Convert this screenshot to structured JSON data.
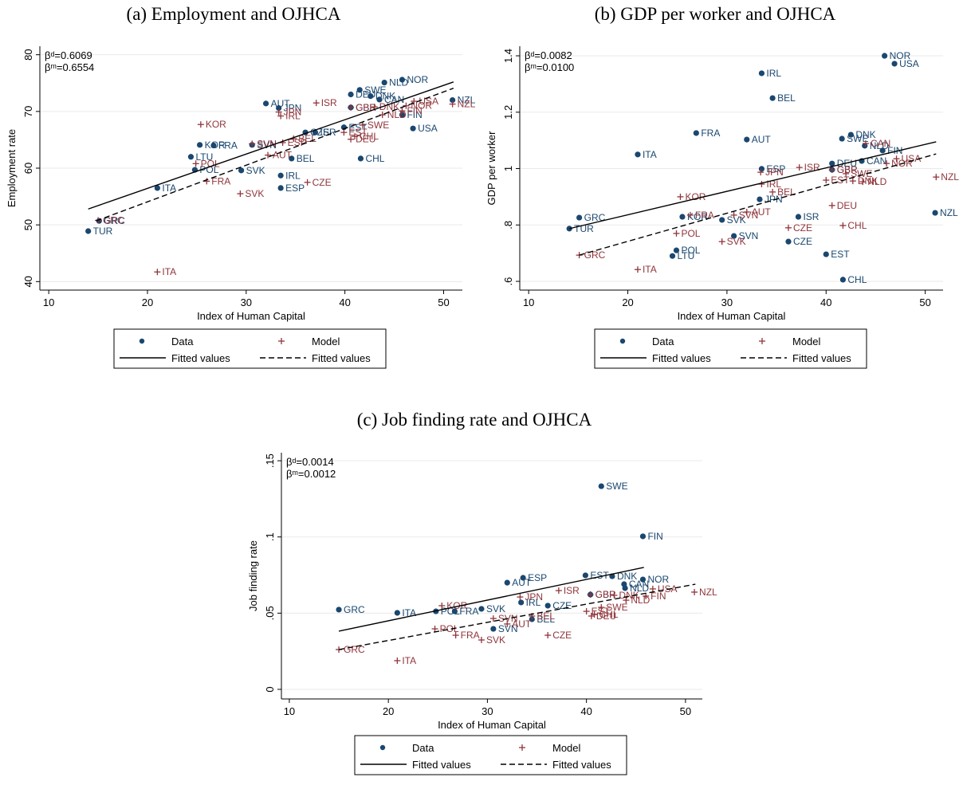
{
  "chart_data": [
    {
      "type": "scatter",
      "title": "(a) Employment and OJHCA",
      "x_label": "Index of Human Capital",
      "y_label": "Employment rate",
      "annotations": [
        "βᵈ=0.6069",
        "βᵐ=0.6554"
      ],
      "xlim": [
        9.1,
        51.9
      ],
      "ylim": [
        38.5,
        81.5
      ],
      "xticks": [
        10,
        20,
        30,
        40,
        50
      ],
      "yticks": [
        40,
        50,
        60,
        70,
        80
      ],
      "grid": true,
      "series": [
        {
          "name": "Data",
          "marker": "dot",
          "color": "#1a476f",
          "labels": [
            "NOR",
            "NLD",
            "SWE",
            "DEU",
            "DNK",
            "CAN",
            "NZL",
            "AUT",
            "JPN",
            "GBR",
            "FIN",
            "USA",
            "EST",
            "ISR",
            "CZE",
            "CHL",
            "BEL",
            "KOR",
            "FRA",
            "SVN",
            "LTU",
            "POL",
            "SVK",
            "IRL",
            "ESP",
            "ITA",
            "GRC",
            "TUR"
          ],
          "x": [
            45.8,
            44.0,
            41.5,
            40.6,
            42.6,
            43.5,
            50.9,
            32.0,
            33.3,
            40.6,
            45.8,
            46.9,
            39.9,
            37.0,
            36.0,
            41.6,
            34.6,
            25.3,
            26.7,
            30.6,
            24.4,
            24.8,
            29.5,
            33.5,
            33.5,
            21.0,
            15.1,
            14.0
          ],
          "values": [
            75.6,
            75.1,
            73.8,
            73.0,
            72.7,
            72.1,
            72.0,
            71.4,
            70.6,
            70.7,
            69.4,
            67.0,
            67.2,
            66.3,
            66.3,
            61.7,
            61.7,
            64.1,
            64.0,
            64.1,
            62.0,
            59.7,
            59.6,
            58.7,
            56.5,
            56.5,
            50.7,
            48.9
          ]
        },
        {
          "name": "Model",
          "marker": "plus",
          "color": "#90353b",
          "labels": [
            "NZL",
            "USA",
            "NOR",
            "ISR",
            "DNK",
            "GBR",
            "FIN",
            "NLD",
            "JPN",
            "IRL",
            "KOR",
            "SWE",
            "EST",
            "CHL",
            "DEU",
            "BEL",
            "ESP",
            "SVN",
            "AUT",
            "POL",
            "FRA",
            "CZE",
            "SVK",
            "GRC",
            "ITA"
          ],
          "x": [
            50.9,
            47.0,
            46.2,
            37.1,
            43.0,
            40.6,
            45.8,
            43.8,
            33.3,
            33.5,
            25.4,
            41.8,
            39.9,
            41.0,
            40.6,
            34.8,
            33.7,
            30.6,
            32.2,
            24.9,
            26.0,
            36.2,
            29.4,
            15.0,
            21.0
          ],
          "values": [
            71.3,
            71.8,
            71.0,
            71.5,
            70.8,
            70.7,
            70.1,
            69.4,
            69.9,
            69.2,
            67.7,
            67.6,
            66.3,
            65.6,
            65.1,
            65.2,
            64.5,
            64.3,
            62.3,
            60.8,
            57.7,
            57.5,
            55.5,
            50.8,
            41.7
          ]
        },
        {
          "name": "Fitted values",
          "marker": "line",
          "dash": false,
          "color": "#000000",
          "x": [
            14.0,
            51.0
          ],
          "values": [
            52.8,
            75.2
          ]
        },
        {
          "name": "Fitted values",
          "marker": "line",
          "dash": true,
          "color": "#000000",
          "x": [
            14.8,
            51.0
          ],
          "values": [
            50.7,
            74.1
          ]
        }
      ]
    },
    {
      "type": "scatter",
      "title": "(b) GDP per worker and OJHCA",
      "x_label": "Index of Human Capital",
      "y_label": "GDP per worker",
      "annotations": [
        "βᵈ=0.0082",
        "βᵐ=0.0100"
      ],
      "xlim": [
        9.1,
        51.8
      ],
      "ylim": [
        0.569,
        1.434
      ],
      "xticks": [
        10,
        20,
        30,
        40,
        50
      ],
      "yticks": [
        {
          "value": 0.6,
          "label": ".6"
        },
        {
          "value": 0.8,
          "label": ".8"
        },
        1,
        1.2,
        1.4
      ],
      "grid": true,
      "series": [
        {
          "name": "Data",
          "marker": "dot",
          "color": "#1a476f",
          "labels": [
            "NOR",
            "USA",
            "IRL",
            "BEL",
            "FRA",
            "DNK",
            "AUT",
            "SWE",
            "NLD",
            "ITA",
            "FIN",
            "DEU",
            "CAN",
            "ESP",
            "GBR",
            "JPN",
            "KOR",
            "SVK",
            "ISR",
            "GRC",
            "TUR",
            "NZL",
            "CZE",
            "SVN",
            "POL",
            "LTU",
            "EST",
            "CHL"
          ],
          "x": [
            45.9,
            46.9,
            33.5,
            34.6,
            26.9,
            42.5,
            32.0,
            41.6,
            43.9,
            21.0,
            45.7,
            40.6,
            43.6,
            33.5,
            40.6,
            33.3,
            25.5,
            29.5,
            37.2,
            15.1,
            14.1,
            51.0,
            36.2,
            30.7,
            24.9,
            24.5,
            40.0,
            41.7
          ],
          "values": [
            1.4,
            1.372,
            1.338,
            1.25,
            1.126,
            1.12,
            1.103,
            1.106,
            1.081,
            1.05,
            1.064,
            1.018,
            1.027,
            0.999,
            0.996,
            0.891,
            0.829,
            0.818,
            0.829,
            0.826,
            0.787,
            0.843,
            0.741,
            0.761,
            0.71,
            0.69,
            0.696,
            0.606
          ]
        },
        {
          "name": "Model",
          "marker": "plus",
          "color": "#90353b",
          "labels": [
            "NZL",
            "ISR",
            "JPN",
            "USA",
            "NOR",
            "CAN",
            "SWE",
            "DNK",
            "NLD",
            "EST",
            "GBR",
            "IRL",
            "BEL",
            "KOR",
            "DEU",
            "AUT",
            "SVN",
            "FRA",
            "CHL",
            "CZE",
            "POL",
            "SVK",
            "GRC",
            "ITA"
          ],
          "x": [
            51.1,
            37.3,
            33.4,
            47.1,
            46.1,
            44.0,
            42.0,
            42.7,
            43.7,
            40.0,
            40.6,
            33.5,
            34.6,
            25.3,
            40.6,
            32.0,
            30.7,
            26.3,
            41.7,
            36.2,
            24.9,
            29.5,
            15.1,
            21.0
          ],
          "values": [
            0.97,
            1.004,
            0.987,
            1.035,
            1.018,
            1.089,
            0.982,
            0.956,
            0.953,
            0.959,
            0.996,
            0.945,
            0.917,
            0.9,
            0.869,
            0.846,
            0.835,
            0.835,
            0.798,
            0.79,
            0.77,
            0.741,
            0.693,
            0.642
          ]
        },
        {
          "name": "Fitted values",
          "marker": "line",
          "dash": false,
          "color": "#000000",
          "x": [
            14.1,
            51.1
          ],
          "values": [
            0.787,
            1.095
          ]
        },
        {
          "name": "Fitted values",
          "marker": "line",
          "dash": true,
          "color": "#000000",
          "x": [
            15.1,
            51.1
          ],
          "values": [
            0.693,
            1.052
          ]
        }
      ]
    },
    {
      "type": "scatter",
      "title": "(c) Job finding rate and OJHCA",
      "x_label": "Index of Human Capital",
      "y_label": "Job finding rate",
      "annotations": [
        "βᵈ=0.0014",
        "βᵐ=0.0012"
      ],
      "xlim": [
        9.2,
        51.7
      ],
      "ylim": [
        -0.0063,
        0.1553
      ],
      "xticks": [
        10,
        20,
        30,
        40,
        50
      ],
      "yticks": [
        0,
        {
          "value": 0.05,
          "label": ".05"
        },
        {
          "value": 0.1,
          "label": ".1"
        },
        {
          "value": 0.15,
          "label": ".15"
        }
      ],
      "grid": true,
      "series": [
        {
          "name": "Data",
          "marker": "dot",
          "color": "#1a476f",
          "labels": [
            "SWE",
            "FIN",
            "EST",
            "ESP",
            "DNK",
            "NOR",
            "AUT",
            "CAN",
            "NLD",
            "GBR",
            "IRL",
            "CZE",
            "SVK",
            "FRA",
            "POL",
            "GRC",
            "ITA",
            "BEL",
            "SVN"
          ],
          "x": [
            41.5,
            45.7,
            39.9,
            33.6,
            42.6,
            45.7,
            32.0,
            43.8,
            43.9,
            40.4,
            33.4,
            36.1,
            29.4,
            26.7,
            24.8,
            15.0,
            20.9,
            34.5,
            30.6
          ],
          "values": [
            0.1333,
            0.1004,
            0.0748,
            0.0732,
            0.0742,
            0.0721,
            0.07,
            0.069,
            0.0664,
            0.0622,
            0.057,
            0.0549,
            0.0528,
            0.0512,
            0.0512,
            0.0523,
            0.0502,
            0.046,
            0.0397
          ]
        },
        {
          "name": "Model",
          "marker": "plus",
          "color": "#90353b",
          "labels": [
            "NZL",
            "USA",
            "ISR",
            "JPN",
            "GBR",
            "DNK",
            "NLD",
            "FIN",
            "KOR",
            "SWE",
            "EST",
            "CHL",
            "DEU",
            "SVN",
            "BEL",
            "AUT",
            "POL",
            "FRA",
            "CZE",
            "SVK",
            "GRC",
            "ITA"
          ],
          "x": [
            50.9,
            46.7,
            37.2,
            33.3,
            40.4,
            42.8,
            44.0,
            46.0,
            25.4,
            41.5,
            40.0,
            40.8,
            40.5,
            30.6,
            34.5,
            32.0,
            24.7,
            26.8,
            36.1,
            29.4,
            15.0,
            20.9
          ],
          "values": [
            0.0638,
            0.0659,
            0.0648,
            0.0606,
            0.0622,
            0.0617,
            0.0585,
            0.0612,
            0.0549,
            0.0538,
            0.0512,
            0.0491,
            0.0481,
            0.0465,
            0.0481,
            0.0429,
            0.0397,
            0.0355,
            0.0355,
            0.0324,
            0.0261,
            0.0188
          ]
        },
        {
          "name": "Fitted values",
          "marker": "line",
          "dash": false,
          "color": "#000000",
          "x": [
            15.0,
            45.8
          ],
          "values": [
            0.0382,
            0.08
          ]
        },
        {
          "name": "Fitted values",
          "marker": "line",
          "dash": true,
          "color": "#000000",
          "x": [
            15.0,
            51.0
          ],
          "values": [
            0.0261,
            0.069
          ]
        }
      ]
    }
  ]
}
